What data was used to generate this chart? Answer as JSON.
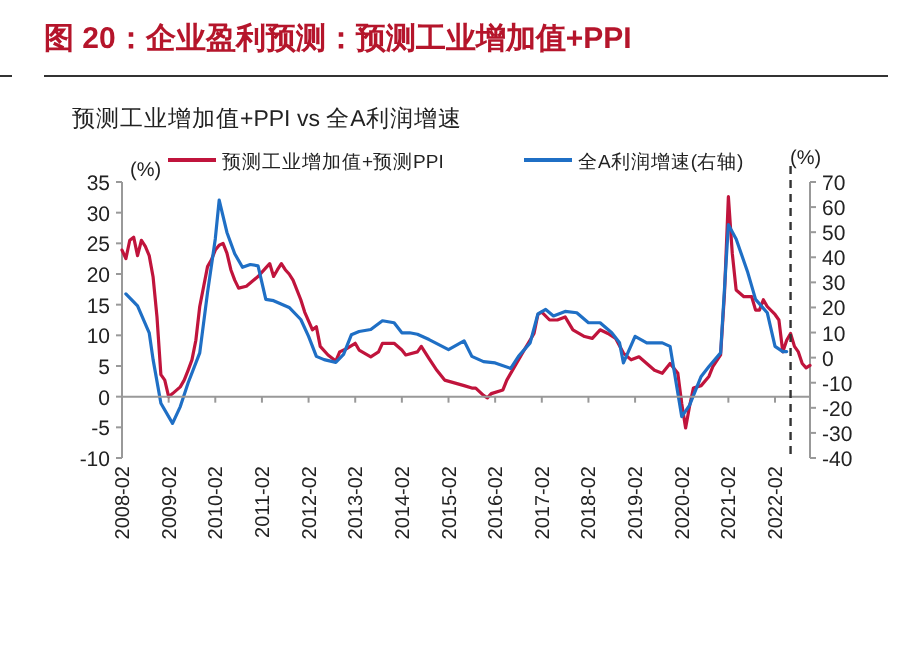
{
  "chart_data": {
    "type": "line",
    "title": "图 20：企业盈利预测：预测工业增加值+PPI",
    "subtitle": "预测工业增加值+PPI vs 全A利润增速",
    "ylabel": "(%)",
    "y2label": "(%)",
    "xlim": [
      "2008-02",
      "2022-11"
    ],
    "xticks": [
      "2008-02",
      "2009-02",
      "2010-02",
      "2011-02",
      "2012-02",
      "2013-02",
      "2014-02",
      "2015-02",
      "2016-02",
      "2017-02",
      "2018-02",
      "2019-02",
      "2020-02",
      "2021-02",
      "2022-02"
    ],
    "ylim": [
      -10,
      35
    ],
    "yticks": [
      -10,
      -5,
      0,
      5,
      10,
      15,
      20,
      25,
      30,
      35
    ],
    "y2lim": [
      -40,
      70
    ],
    "y2ticks": [
      -40,
      -30,
      -20,
      -10,
      0,
      10,
      20,
      30,
      40,
      50,
      60,
      70
    ],
    "legend": "top",
    "grid": false,
    "ref_lines": [
      {
        "axis": "y",
        "value": 0,
        "color": "#999999",
        "line_style": "solid"
      },
      {
        "axis": "x",
        "value": "2022-06",
        "color": "#333333",
        "line_style": "dashed"
      }
    ],
    "series": [
      {
        "name": "预测工业增加值+预测PPI",
        "color": "#c0143c",
        "x": [
          "2008-02",
          "2008-03",
          "2008-04",
          "2008-05",
          "2008-06",
          "2008-07",
          "2008-08",
          "2008-09",
          "2008-10",
          "2008-11",
          "2008-12",
          "2009-01",
          "2009-02",
          "2009-03",
          "2009-05",
          "2009-06",
          "2009-07",
          "2009-08",
          "2009-09",
          "2009-10",
          "2009-12",
          "2010-01",
          "2010-02",
          "2010-03",
          "2010-04",
          "2010-05",
          "2010-06",
          "2010-07",
          "2010-08",
          "2010-10",
          "2011-01",
          "2011-03",
          "2011-04",
          "2011-05",
          "2011-06",
          "2011-07",
          "2011-08",
          "2011-09",
          "2011-10",
          "2011-12",
          "2012-01",
          "2012-03",
          "2012-04",
          "2012-05",
          "2012-07",
          "2012-09",
          "2012-10",
          "2012-12",
          "2013-02",
          "2013-03",
          "2013-06",
          "2013-08",
          "2013-09",
          "2013-12",
          "2014-02",
          "2014-03",
          "2014-06",
          "2014-07",
          "2014-09",
          "2014-11",
          "2015-01",
          "2015-06",
          "2015-08",
          "2015-09",
          "2015-11",
          "2015-12",
          "2016-01",
          "2016-04",
          "2016-05",
          "2016-07",
          "2016-09",
          "2016-12",
          "2017-01",
          "2017-02",
          "2017-04",
          "2017-06",
          "2017-08",
          "2017-10",
          "2018-01",
          "2018-03",
          "2018-05",
          "2018-07",
          "2018-09",
          "2018-11",
          "2019-01",
          "2019-03",
          "2019-05",
          "2019-07",
          "2019-09",
          "2019-11",
          "2020-01",
          "2020-02",
          "2020-03",
          "2020-04",
          "2020-05",
          "2020-07",
          "2020-09",
          "2020-10",
          "2020-12",
          "2021-01",
          "2021-02",
          "2021-03",
          "2021-04",
          "2021-06",
          "2021-08",
          "2021-09",
          "2021-10",
          "2021-11",
          "2021-12",
          "2022-02",
          "2022-03",
          "2022-04",
          "2022-05",
          "2022-06",
          "2022-07",
          "2022-08",
          "2022-09",
          "2022-10",
          "2022-11"
        ],
        "values": [
          23.9,
          22.5,
          25.5,
          26,
          23,
          25.5,
          24.5,
          23,
          19.5,
          13,
          3.6,
          2.7,
          0,
          0.5,
          1.6,
          2.7,
          4.3,
          6,
          9.2,
          14.7,
          21.2,
          22.3,
          23.9,
          24.7,
          25,
          23.4,
          20.7,
          19,
          17.7,
          18,
          19.6,
          21,
          21.7,
          19.6,
          20.7,
          21.7,
          20.7,
          20,
          19,
          15.8,
          13.8,
          10.9,
          11.4,
          8.2,
          6.8,
          5.8,
          7.3,
          7.9,
          8.7,
          7.6,
          6.5,
          7.3,
          8.7,
          8.7,
          7.6,
          6.8,
          7.3,
          8.2,
          6.2,
          4.3,
          2.7,
          1.8,
          1.4,
          1.4,
          0.2,
          -0.2,
          0.5,
          1.1,
          2.7,
          4.9,
          7.1,
          10.3,
          13.4,
          13.8,
          12.5,
          12.5,
          13,
          10.9,
          9.8,
          9.5,
          10.9,
          10.3,
          9.5,
          7.1,
          6,
          6.5,
          5.4,
          4.3,
          3.8,
          5.4,
          3.8,
          -1.1,
          -5.1,
          -1.6,
          1.4,
          1.8,
          3.3,
          4.9,
          6.8,
          16.8,
          32.6,
          23.4,
          17.4,
          16.3,
          16.3,
          14.1,
          14.1,
          15.8,
          14.7,
          13.4,
          12.5,
          7.3,
          9.2,
          10.3,
          8.2,
          7.3,
          5.4,
          4.7,
          5.1
        ]
      },
      {
        "name": "全A利润增速(右轴)",
        "color": "#1f6fc5",
        "axis": "y2",
        "x": [
          "2008-03",
          "2008-06",
          "2008-09",
          "2008-10",
          "2008-12",
          "2009-03",
          "2009-05",
          "2009-07",
          "2009-10",
          "2009-12",
          "2010-02",
          "2010-03",
          "2010-05",
          "2010-07",
          "2010-09",
          "2010-11",
          "2011-01",
          "2011-03",
          "2011-05",
          "2011-09",
          "2011-12",
          "2012-02",
          "2012-04",
          "2012-06",
          "2012-09",
          "2012-11",
          "2013-01",
          "2013-03",
          "2013-06",
          "2013-09",
          "2013-12",
          "2014-02",
          "2014-04",
          "2014-06",
          "2014-09",
          "2015-02",
          "2015-06",
          "2015-08",
          "2015-11",
          "2016-02",
          "2016-06",
          "2016-08",
          "2016-11",
          "2017-01",
          "2017-03",
          "2017-05",
          "2017-08",
          "2017-11",
          "2018-02",
          "2018-05",
          "2018-08",
          "2018-10",
          "2018-11",
          "2019-02",
          "2019-05",
          "2019-09",
          "2019-11",
          "2020-02",
          "2020-04",
          "2020-07",
          "2020-09",
          "2020-12",
          "2021-02",
          "2021-04",
          "2021-07",
          "2021-09",
          "2021-12",
          "2022-02",
          "2022-04",
          "2022-05"
        ],
        "values": [
          25.4,
          20.6,
          9.9,
          -0.8,
          -18.2,
          -26.2,
          -19.5,
          -10.1,
          1.9,
          25.9,
          47.3,
          62.8,
          49.9,
          41.4,
          36,
          37.1,
          36.6,
          23.2,
          22.7,
          20,
          15.2,
          8.5,
          0.5,
          -0.8,
          -1.9,
          1.3,
          9.1,
          10.4,
          11.2,
          14.7,
          13.9,
          9.9,
          9.9,
          9.3,
          7.2,
          3.2,
          6.7,
          0.5,
          -1.6,
          -2.1,
          -4.3,
          0.5,
          5.9,
          17.4,
          19.2,
          16.6,
          18.4,
          17.9,
          13.9,
          13.9,
          9.9,
          5.9,
          -2.1,
          8.5,
          5.9,
          5.9,
          4.5,
          -23.5,
          -19,
          -7.5,
          -3.5,
          1.9,
          53,
          47.3,
          33.9,
          23.2,
          17.9,
          4.5,
          2.4,
          2.4
        ]
      }
    ]
  }
}
